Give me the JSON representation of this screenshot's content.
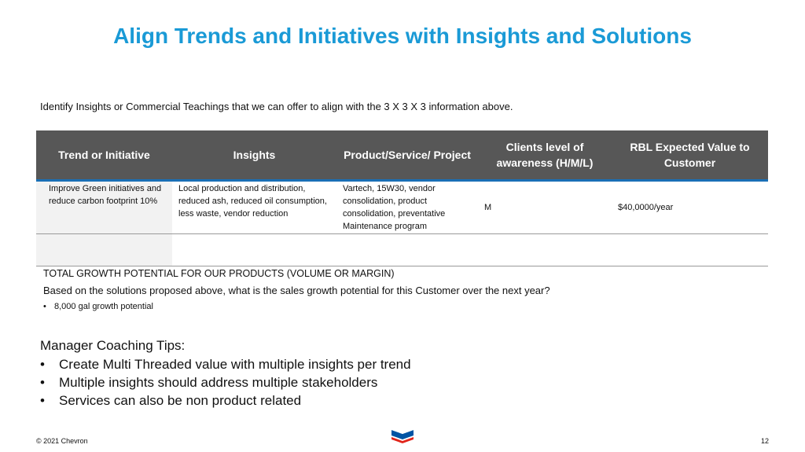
{
  "title": "Align Trends and Initiatives with Insights and Solutions",
  "intro": "Identify Insights or Commercial Teachings that we can offer to align with the 3 X 3 X 3 information above.",
  "table": {
    "headers": [
      "Trend or Initiative",
      "Insights",
      "Product/Service/ Project",
      "Clients level of awareness (H/M/L)",
      "RBL Expected Value to Customer"
    ],
    "rows": [
      {
        "trend": "Improve Green initiatives and reduce carbon footprint 10%",
        "insights": "Local production and distribution, reduced ash, reduced oil consumption, less waste, vendor reduction",
        "product": "Vartech, 15W30, vendor consolidation, product consolidation, preventative Maintenance program",
        "awareness": "M",
        "value": "$40,0000/year"
      },
      {
        "trend": "",
        "insights": "",
        "product": "",
        "awareness": "",
        "value": ""
      }
    ]
  },
  "growth": {
    "heading": "TOTAL GROWTH POTENTIAL FOR OUR PRODUCTS (VOLUME OR MARGIN)",
    "question": "Based on the solutions proposed above, what is the sales growth potential for this Customer over the next year?",
    "bullet": "8,000 gal growth potential"
  },
  "tips": {
    "heading": "Manager Coaching Tips:",
    "items": [
      "Create Multi Threaded value with multiple insights per trend",
      "Multiple insights should address multiple stakeholders",
      "Services can also be non product related"
    ]
  },
  "footer": {
    "copyright": "© 2021 Chevron",
    "page": "12",
    "logo_icon": "chevron-logo-icon",
    "colors": {
      "logo_blue": "#0054a4",
      "logo_red": "#e1251b",
      "title_blue": "#1a9ad6"
    }
  }
}
